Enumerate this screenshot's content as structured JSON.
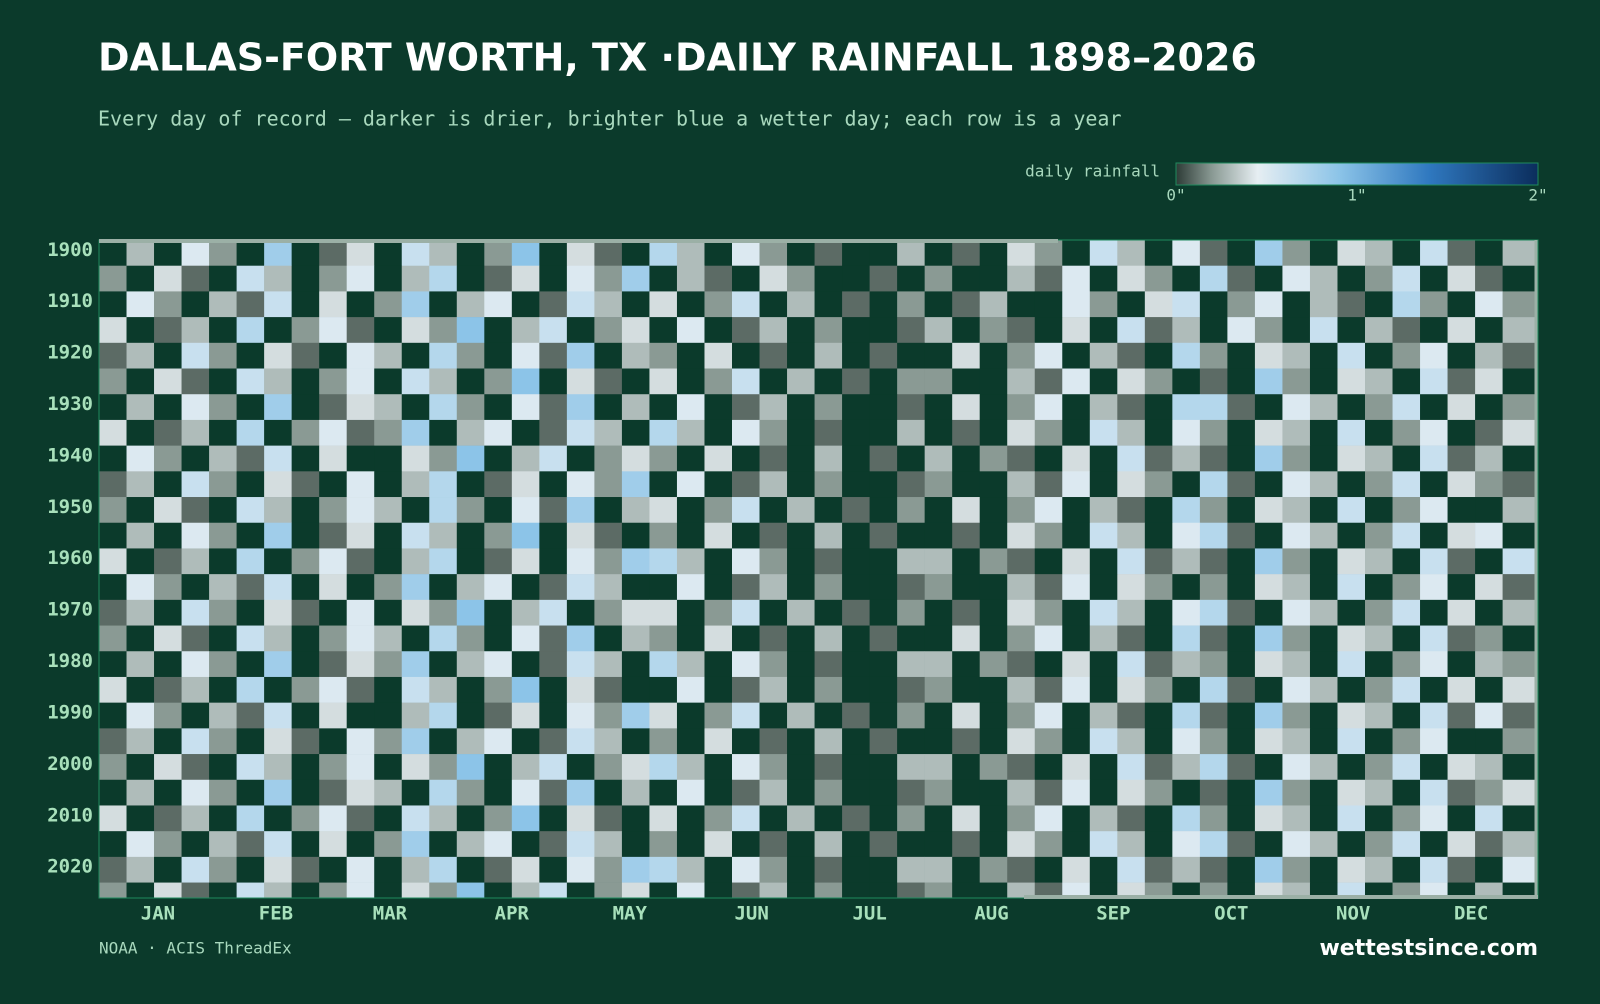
{
  "chart_data": {
    "type": "heatmap",
    "title": "DALLAS-FORT WORTH, TX ·DAILY RAINFALL 1898–2026",
    "subtitle": "Every day of record — darker is drier, brighter blue a wetter day; each row is a year",
    "source": "NOAA · ACIS ThreadEx",
    "brand": "wettestsince.com",
    "colorbar_label": "daily rainfall",
    "clim": [
      0,
      2
    ],
    "cticks": [
      {
        "value": 0,
        "label": "0\""
      },
      {
        "value": 1,
        "label": "1\""
      },
      {
        "value": 2,
        "label": "2\""
      }
    ],
    "colorscale": [
      [
        0,
        "#2d3b36"
      ],
      [
        0.2,
        "#8a9a94"
      ],
      [
        0.45,
        "#e6eef2"
      ],
      [
        0.9,
        "#8cc4e8"
      ],
      [
        1.4,
        "#2f78bf"
      ],
      [
        2,
        "#0b2d5c"
      ]
    ],
    "xlim": [
      1,
      367
    ],
    "xticks": [
      {
        "value": 16,
        "label": "JAN"
      },
      {
        "value": 46,
        "label": "FEB"
      },
      {
        "value": 75,
        "label": "MAR"
      },
      {
        "value": 106,
        "label": "APR"
      },
      {
        "value": 136,
        "label": "MAY"
      },
      {
        "value": 167,
        "label": "JUN"
      },
      {
        "value": 197,
        "label": "JUL"
      },
      {
        "value": 228,
        "label": "AUG"
      },
      {
        "value": 259,
        "label": "SEP"
      },
      {
        "value": 289,
        "label": "OCT"
      },
      {
        "value": 320,
        "label": "NOV"
      },
      {
        "value": 350,
        "label": "DEC"
      }
    ],
    "ylim": [
      1898,
      2026
    ],
    "yticks": [
      1900,
      1910,
      1920,
      1930,
      1940,
      1950,
      1960,
      1970,
      1980,
      1990,
      2000,
      2010,
      2020
    ],
    "x": [
      1,
      8,
      15,
      22,
      29,
      36,
      43,
      50,
      57,
      64,
      71,
      78,
      85,
      92,
      99,
      106,
      113,
      120,
      127,
      134,
      141,
      148,
      155,
      162,
      169,
      176,
      183,
      190,
      197,
      204,
      211,
      218,
      225,
      232,
      239,
      246,
      253,
      260,
      267,
      274,
      281,
      288,
      295,
      302,
      309,
      316,
      323,
      330,
      337,
      344,
      351,
      358
    ],
    "y": [
      1898,
      1903,
      1908,
      1913,
      1918,
      1923,
      1928,
      1933,
      1938,
      1943,
      1948,
      1953,
      1958,
      1963,
      1968,
      1973,
      1978,
      1983,
      1988,
      1993,
      1998,
      2003,
      2008,
      2013,
      2018,
      2023
    ],
    "values": [
      [
        0,
        0.3,
        0,
        0.5,
        0.2,
        0,
        0.8,
        0,
        0.1,
        0.4,
        0,
        0.6,
        0.3,
        0,
        0.2,
        0.9,
        0,
        0.4,
        0.1,
        0,
        0.7,
        0.3,
        0,
        0.5,
        0.2,
        0,
        0.1,
        0,
        0,
        0.3,
        0,
        0.1,
        0,
        0.4,
        0.2,
        0,
        0.6,
        0.3,
        0,
        0.5,
        0.1,
        0,
        0.8,
        0.2,
        0,
        0.4,
        0.3,
        0,
        0.6,
        0.1,
        0,
        0.3
      ],
      [
        0.2,
        0,
        0.4,
        0.1,
        0,
        0.6,
        0.3,
        0,
        0.2,
        0.5,
        0,
        0.3,
        0.7,
        0,
        0.1,
        0.4,
        0,
        0.5,
        0.2,
        0.8,
        0,
        0.3,
        0.1,
        0,
        0.4,
        0.2,
        0,
        0,
        0.1,
        0,
        0.2,
        0,
        0,
        0.3,
        0.1,
        0.5,
        0,
        0.4,
        0.2,
        0,
        0.7,
        0.1,
        0,
        0.5,
        0.3,
        0,
        0.2,
        0.6,
        0,
        0.4,
        0.1,
        0
      ],
      [
        0,
        0.5,
        0.2,
        0,
        0.3,
        0.1,
        0.6,
        0,
        0.4,
        0,
        0.2,
        0.8,
        0,
        0.3,
        0.5,
        0,
        0.1,
        0.6,
        0.3,
        0,
        0.4,
        0,
        0.2,
        0.6,
        0,
        0.3,
        0,
        0.1,
        0,
        0.2,
        0,
        0.1,
        0.3,
        0,
        0,
        0.5,
        0.2,
        0,
        0.4,
        0.6,
        0,
        0.2,
        0.5,
        0,
        0.3,
        0.1,
        0,
        0.7,
        0.2,
        0,
        0.5,
        0.2
      ],
      [
        0.4,
        0,
        0.1,
        0.3,
        0,
        0.7,
        0,
        0.2,
        0.5,
        0.1,
        0,
        0.4,
        0.2,
        0.9,
        0,
        0.3,
        0.6,
        0,
        0.2,
        0.4,
        0,
        0.5,
        0,
        0.1,
        0.3,
        0,
        0.2,
        0,
        0,
        0.1,
        0.3,
        0,
        0.2,
        0.1,
        0,
        0.4,
        0,
        0.6,
        0.1,
        0.3,
        0,
        0.5,
        0.2,
        0,
        0.6,
        0,
        0.3,
        0.1,
        0,
        0.4,
        0,
        0.3
      ],
      [
        0.1,
        0.3,
        0,
        0.6,
        0.2,
        0,
        0.4,
        0.1,
        0,
        0.5,
        0.3,
        0,
        0.7,
        0.2,
        0,
        0.5,
        0.1,
        0.8,
        0,
        0.3,
        0.2,
        0,
        0.4,
        0,
        0.1,
        0,
        0.3,
        0,
        0.1,
        0,
        0,
        0.4,
        0,
        0.2,
        0.5,
        0,
        0.3,
        0.1,
        0,
        0.7,
        0.2,
        0,
        0.4,
        0.3,
        0,
        0.6,
        0,
        0.2,
        0.5,
        0,
        0.3,
        0.1
      ],
      [
        0.2,
        0,
        0.4,
        0.1,
        0,
        0.6,
        0.3,
        0,
        0.2,
        0.5,
        0,
        0.6,
        0.3,
        0,
        0.2,
        0.9,
        0,
        0.4,
        0.1,
        0,
        0.4,
        0,
        0.2,
        0.6,
        0,
        0.3,
        0,
        0.1,
        0,
        0.2,
        0.2,
        0,
        0,
        0.3,
        0.1,
        0.5,
        0,
        0.4,
        0.2,
        0,
        0.1,
        0,
        0.8,
        0.2,
        0,
        0.4,
        0.3,
        0,
        0.6,
        0.1,
        0.4,
        0
      ],
      [
        0,
        0.3,
        0,
        0.5,
        0.2,
        0,
        0.8,
        0,
        0.1,
        0.4,
        0.3,
        0,
        0.7,
        0.2,
        0,
        0.5,
        0.1,
        0.8,
        0,
        0.3,
        0,
        0.5,
        0,
        0.1,
        0.3,
        0,
        0.2,
        0,
        0,
        0.1,
        0,
        0.4,
        0,
        0.2,
        0.5,
        0,
        0.3,
        0.1,
        0,
        0.7,
        0.7,
        0.1,
        0,
        0.5,
        0.3,
        0,
        0.2,
        0.6,
        0,
        0.4,
        0,
        0.2
      ],
      [
        0.4,
        0,
        0.1,
        0.3,
        0,
        0.7,
        0,
        0.2,
        0.5,
        0.1,
        0.2,
        0.8,
        0,
        0.3,
        0.5,
        0,
        0.1,
        0.6,
        0.3,
        0,
        0.7,
        0.3,
        0,
        0.5,
        0.2,
        0,
        0.1,
        0,
        0,
        0.3,
        0,
        0.1,
        0,
        0.4,
        0.2,
        0,
        0.6,
        0.3,
        0,
        0.5,
        0.2,
        0,
        0.4,
        0.3,
        0,
        0.6,
        0,
        0.2,
        0.5,
        0,
        0.1,
        0.4
      ],
      [
        0,
        0.5,
        0.2,
        0,
        0.3,
        0.1,
        0.6,
        0,
        0.4,
        0,
        0,
        0.4,
        0.2,
        0.9,
        0,
        0.3,
        0.6,
        0,
        0.2,
        0.4,
        0.2,
        0,
        0.4,
        0,
        0.1,
        0,
        0.3,
        0,
        0.1,
        0,
        0.3,
        0,
        0.2,
        0.1,
        0,
        0.4,
        0,
        0.6,
        0.1,
        0.3,
        0.1,
        0,
        0.8,
        0.2,
        0,
        0.4,
        0.3,
        0,
        0.6,
        0.1,
        0.3,
        0
      ],
      [
        0.1,
        0.3,
        0,
        0.6,
        0.2,
        0,
        0.4,
        0.1,
        0,
        0.5,
        0,
        0.3,
        0.7,
        0,
        0.1,
        0.4,
        0,
        0.5,
        0.2,
        0.8,
        0,
        0.5,
        0,
        0.1,
        0.3,
        0,
        0.2,
        0,
        0,
        0.1,
        0.2,
        0,
        0,
        0.3,
        0.1,
        0.5,
        0,
        0.4,
        0.2,
        0,
        0.7,
        0.1,
        0,
        0.5,
        0.3,
        0,
        0.2,
        0.6,
        0,
        0.4,
        0.2,
        0.1
      ],
      [
        0.2,
        0,
        0.4,
        0.1,
        0,
        0.6,
        0.3,
        0,
        0.2,
        0.5,
        0.3,
        0,
        0.7,
        0.2,
        0,
        0.5,
        0.1,
        0.8,
        0,
        0.3,
        0.4,
        0,
        0.2,
        0.6,
        0,
        0.3,
        0,
        0.1,
        0,
        0.2,
        0,
        0.4,
        0,
        0.2,
        0.5,
        0,
        0.3,
        0.1,
        0,
        0.7,
        0.2,
        0,
        0.4,
        0.3,
        0,
        0.6,
        0,
        0.2,
        0.5,
        0,
        0,
        0.3
      ],
      [
        0,
        0.3,
        0,
        0.5,
        0.2,
        0,
        0.8,
        0,
        0.1,
        0.4,
        0,
        0.6,
        0.3,
        0,
        0.2,
        0.9,
        0,
        0.4,
        0.1,
        0,
        0.2,
        0,
        0.4,
        0,
        0.1,
        0,
        0.3,
        0,
        0.1,
        0,
        0,
        0.1,
        0,
        0.4,
        0.2,
        0,
        0.6,
        0.3,
        0,
        0.5,
        0.7,
        0.1,
        0,
        0.5,
        0.3,
        0,
        0.2,
        0.6,
        0,
        0.4,
        0.5,
        0
      ],
      [
        0.4,
        0,
        0.1,
        0.3,
        0,
        0.7,
        0,
        0.2,
        0.5,
        0.1,
        0,
        0.3,
        0.7,
        0,
        0.1,
        0.4,
        0,
        0.5,
        0.2,
        0.8,
        0.7,
        0.3,
        0,
        0.5,
        0.2,
        0,
        0.1,
        0,
        0,
        0.3,
        0.3,
        0,
        0.2,
        0.1,
        0,
        0.4,
        0,
        0.6,
        0.1,
        0.3,
        0.1,
        0,
        0.8,
        0.2,
        0,
        0.4,
        0.3,
        0,
        0.6,
        0.1,
        0,
        0.6
      ],
      [
        0,
        0.5,
        0.2,
        0,
        0.3,
        0.1,
        0.6,
        0,
        0.4,
        0,
        0.2,
        0.8,
        0,
        0.3,
        0.5,
        0,
        0.1,
        0.6,
        0.3,
        0,
        0,
        0.5,
        0,
        0.1,
        0.3,
        0,
        0.2,
        0,
        0,
        0.1,
        0.2,
        0,
        0,
        0.3,
        0.1,
        0.5,
        0,
        0.4,
        0.2,
        0,
        0.2,
        0,
        0.4,
        0.3,
        0,
        0.6,
        0,
        0.2,
        0.5,
        0,
        0.4,
        0.1
      ],
      [
        0.1,
        0.3,
        0,
        0.6,
        0.2,
        0,
        0.4,
        0.1,
        0,
        0.5,
        0,
        0.4,
        0.2,
        0.9,
        0,
        0.3,
        0.6,
        0,
        0.2,
        0.4,
        0.4,
        0,
        0.2,
        0.6,
        0,
        0.3,
        0,
        0.1,
        0,
        0.2,
        0,
        0.1,
        0,
        0.4,
        0.2,
        0,
        0.6,
        0.3,
        0,
        0.5,
        0.7,
        0.1,
        0,
        0.5,
        0.3,
        0,
        0.2,
        0.6,
        0,
        0.4,
        0,
        0.3
      ],
      [
        0.2,
        0,
        0.4,
        0.1,
        0,
        0.6,
        0.3,
        0,
        0.2,
        0.5,
        0.3,
        0,
        0.7,
        0.2,
        0,
        0.5,
        0.1,
        0.8,
        0,
        0.3,
        0.2,
        0,
        0.4,
        0,
        0.1,
        0,
        0.3,
        0,
        0.1,
        0,
        0,
        0.4,
        0,
        0.2,
        0.5,
        0,
        0.3,
        0.1,
        0,
        0.7,
        0.1,
        0,
        0.8,
        0.2,
        0,
        0.4,
        0.3,
        0,
        0.6,
        0.1,
        0.2,
        0
      ],
      [
        0,
        0.3,
        0,
        0.5,
        0.2,
        0,
        0.8,
        0,
        0.1,
        0.4,
        0.2,
        0.8,
        0,
        0.3,
        0.5,
        0,
        0.1,
        0.6,
        0.3,
        0,
        0.7,
        0.3,
        0,
        0.5,
        0.2,
        0,
        0.1,
        0,
        0,
        0.3,
        0.3,
        0,
        0.2,
        0.1,
        0,
        0.4,
        0,
        0.6,
        0.1,
        0.3,
        0.2,
        0,
        0.4,
        0.3,
        0,
        0.6,
        0,
        0.2,
        0.5,
        0,
        0.3,
        0.2
      ],
      [
        0.4,
        0,
        0.1,
        0.3,
        0,
        0.7,
        0,
        0.2,
        0.5,
        0.1,
        0,
        0.6,
        0.3,
        0,
        0.2,
        0.9,
        0,
        0.4,
        0.1,
        0,
        0,
        0.5,
        0,
        0.1,
        0.3,
        0,
        0.2,
        0,
        0,
        0.1,
        0.2,
        0,
        0,
        0.3,
        0.1,
        0.5,
        0,
        0.4,
        0.2,
        0,
        0.7,
        0.1,
        0,
        0.5,
        0.3,
        0,
        0.2,
        0.6,
        0,
        0.4,
        0,
        0.4
      ],
      [
        0,
        0.5,
        0.2,
        0,
        0.3,
        0.1,
        0.6,
        0,
        0.4,
        0,
        0,
        0.3,
        0.7,
        0,
        0.1,
        0.4,
        0,
        0.5,
        0.2,
        0.8,
        0.4,
        0,
        0.2,
        0.6,
        0,
        0.3,
        0,
        0.1,
        0,
        0.2,
        0,
        0.4,
        0,
        0.2,
        0.5,
        0,
        0.3,
        0.1,
        0,
        0.7,
        0.1,
        0,
        0.8,
        0.2,
        0,
        0.4,
        0.3,
        0,
        0.6,
        0.1,
        0.5,
        0.1
      ],
      [
        0.1,
        0.3,
        0,
        0.6,
        0.2,
        0,
        0.4,
        0.1,
        0,
        0.5,
        0.2,
        0.8,
        0,
        0.3,
        0.5,
        0,
        0.1,
        0.6,
        0.3,
        0,
        0.2,
        0,
        0.4,
        0,
        0.1,
        0,
        0.3,
        0,
        0.1,
        0,
        0,
        0.1,
        0,
        0.4,
        0.2,
        0,
        0.6,
        0.3,
        0,
        0.5,
        0.2,
        0,
        0.4,
        0.3,
        0,
        0.6,
        0,
        0.2,
        0.5,
        0,
        0,
        0.2
      ],
      [
        0.2,
        0,
        0.4,
        0.1,
        0,
        0.6,
        0.3,
        0,
        0.2,
        0.5,
        0,
        0.4,
        0.2,
        0.9,
        0,
        0.3,
        0.6,
        0,
        0.2,
        0.4,
        0.7,
        0.3,
        0,
        0.5,
        0.2,
        0,
        0.1,
        0,
        0,
        0.3,
        0.3,
        0,
        0.2,
        0.1,
        0,
        0.4,
        0,
        0.6,
        0.1,
        0.3,
        0.7,
        0.1,
        0,
        0.5,
        0.3,
        0,
        0.2,
        0.6,
        0,
        0.4,
        0.3,
        0
      ],
      [
        0,
        0.3,
        0,
        0.5,
        0.2,
        0,
        0.8,
        0,
        0.1,
        0.4,
        0.3,
        0,
        0.7,
        0.2,
        0,
        0.5,
        0.1,
        0.8,
        0,
        0.3,
        0,
        0.5,
        0,
        0.1,
        0.3,
        0,
        0.2,
        0,
        0,
        0.1,
        0.2,
        0,
        0,
        0.3,
        0.1,
        0.5,
        0,
        0.4,
        0.2,
        0,
        0.1,
        0,
        0.8,
        0.2,
        0,
        0.4,
        0.3,
        0,
        0.6,
        0.1,
        0.2,
        0.4
      ],
      [
        0.4,
        0,
        0.1,
        0.3,
        0,
        0.7,
        0,
        0.2,
        0.5,
        0.1,
        0,
        0.6,
        0.3,
        0,
        0.2,
        0.9,
        0,
        0.4,
        0.1,
        0,
        0.4,
        0,
        0.2,
        0.6,
        0,
        0.3,
        0,
        0.1,
        0,
        0.2,
        0,
        0.4,
        0,
        0.2,
        0.5,
        0,
        0.3,
        0.1,
        0,
        0.7,
        0.2,
        0,
        0.4,
        0.3,
        0,
        0.6,
        0,
        0.2,
        0.5,
        0,
        0.6,
        0
      ],
      [
        0,
        0.5,
        0.2,
        0,
        0.3,
        0.1,
        0.6,
        0,
        0.4,
        0,
        0.2,
        0.8,
        0,
        0.3,
        0.5,
        0,
        0.1,
        0.6,
        0.3,
        0,
        0.2,
        0,
        0.4,
        0,
        0.1,
        0,
        0.3,
        0,
        0.1,
        0,
        0,
        0.1,
        0,
        0.4,
        0.2,
        0,
        0.6,
        0.3,
        0,
        0.5,
        0.7,
        0.1,
        0,
        0.5,
        0.3,
        0,
        0.2,
        0.6,
        0,
        0.4,
        0.1,
        0.3
      ],
      [
        0.1,
        0.3,
        0,
        0.6,
        0.2,
        0,
        0.4,
        0.1,
        0,
        0.5,
        0,
        0.3,
        0.7,
        0,
        0.1,
        0.4,
        0,
        0.5,
        0.2,
        0.8,
        0.7,
        0.3,
        0,
        0.5,
        0.2,
        0,
        0.1,
        0,
        0,
        0.3,
        0.3,
        0,
        0.2,
        0.1,
        0,
        0.4,
        0,
        0.6,
        0.1,
        0.3,
        0.1,
        0,
        0.8,
        0.2,
        0,
        0.4,
        0.3,
        0,
        0.6,
        0.1,
        0,
        0.5
      ],
      [
        0.2,
        0,
        0.4,
        0.1,
        0,
        0.6,
        0.3,
        0,
        0.2,
        0.5,
        0,
        0.4,
        0.2,
        0.9,
        0,
        0.3,
        0.6,
        0,
        0.2,
        0.4,
        0,
        0.5,
        0,
        0.1,
        0.3,
        0,
        0.2,
        0,
        0,
        0.1,
        0.2,
        0,
        0,
        0.3,
        0.1,
        0.5,
        0,
        0.4,
        0.2,
        0,
        0.2,
        0,
        0.4,
        0.3,
        0,
        0.6,
        0,
        0.2,
        0.5,
        0,
        0.3,
        0
      ]
    ]
  }
}
